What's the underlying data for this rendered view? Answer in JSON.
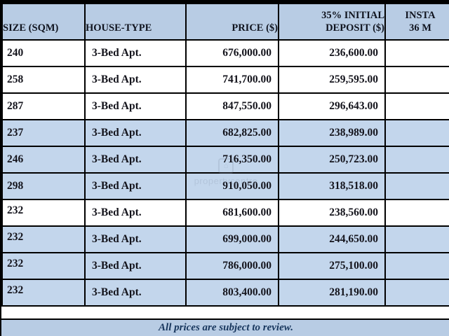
{
  "table": {
    "columns": [
      {
        "label": "SIZE (SQM)"
      },
      {
        "label": "HOUSE-TYPE"
      },
      {
        "label": "PRICE ($)"
      },
      {
        "label": "35% INITIAL\nDEPOSIT ($)"
      },
      {
        "label": "INSTA\n36 M"
      }
    ],
    "rows": [
      {
        "size": "240",
        "house_type": "3-Bed Apt.",
        "price": "676,000.00",
        "deposit": "236,600.00",
        "installment": "",
        "shaded": false,
        "size_top": false
      },
      {
        "size": "258",
        "house_type": "3-Bed Apt.",
        "price": "741,700.00",
        "deposit": "259,595.00",
        "installment": "",
        "shaded": false,
        "size_top": false
      },
      {
        "size": "287",
        "house_type": "3-Bed Apt.",
        "price": "847,550.00",
        "deposit": "296,643.00",
        "installment": "",
        "shaded": false,
        "size_top": false
      },
      {
        "size": "237",
        "house_type": "3-Bed Apt.",
        "price": "682,825.00",
        "deposit": "238,989.00",
        "installment": "",
        "shaded": true,
        "size_top": false
      },
      {
        "size": "246",
        "house_type": "3-Bed Apt.",
        "price": "716,350.00",
        "deposit": "250,723.00",
        "installment": "",
        "shaded": true,
        "size_top": false
      },
      {
        "size": "298",
        "house_type": "3-Bed Apt.",
        "price": "910,050.00",
        "deposit": "318,518.00",
        "installment": "",
        "shaded": true,
        "size_top": false
      },
      {
        "size": "232",
        "house_type": "3-Bed Apt.",
        "price": "681,600.00",
        "deposit": "238,560.00",
        "installment": "",
        "shaded": false,
        "size_top": true
      },
      {
        "size": "232",
        "house_type": "3-Bed Apt.",
        "price": "699,000.00",
        "deposit": "244,650.00",
        "installment": "",
        "shaded": true,
        "size_top": true
      },
      {
        "size": "232",
        "house_type": "3-Bed Apt.",
        "price": "786,000.00",
        "deposit": "275,100.00",
        "installment": "",
        "shaded": true,
        "size_top": true
      },
      {
        "size": "232",
        "house_type": "3-Bed Apt.",
        "price": "803,400.00",
        "deposit": "281,190.00",
        "installment": "",
        "shaded": true,
        "size_top": true
      }
    ]
  },
  "footer": {
    "note": "All prices are subject to review."
  },
  "watermark": {
    "icon": "house-icon",
    "text": "propertycentre"
  },
  "colors": {
    "header_bg": "#b8cce4",
    "row_shaded_bg": "#c3d6ec",
    "footer_bg": "#b8cce4",
    "footer_text": "#17365d",
    "border": "#000000"
  }
}
